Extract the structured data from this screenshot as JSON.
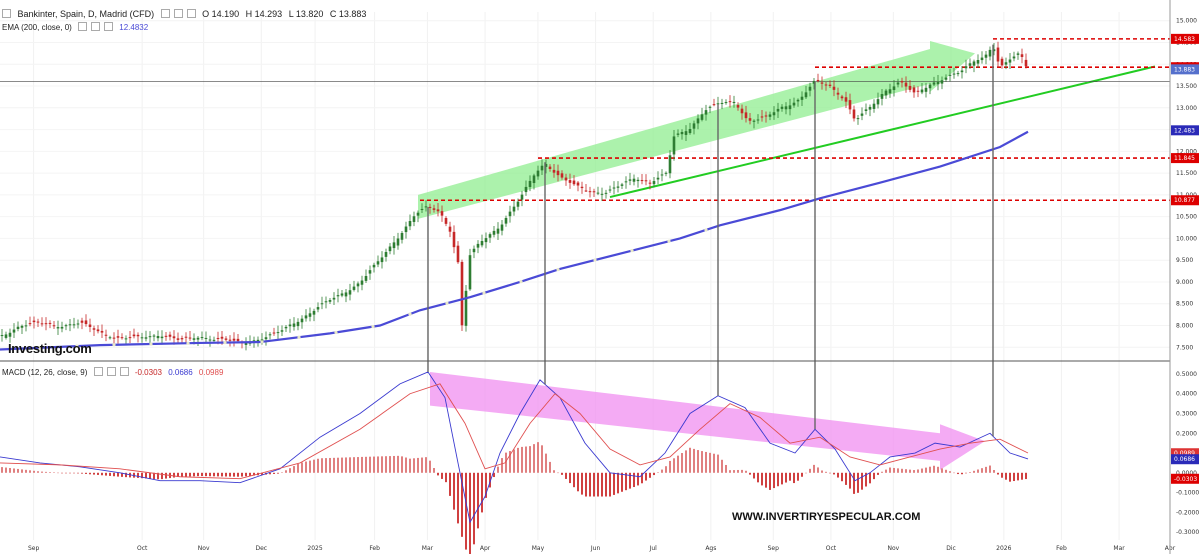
{
  "header": {
    "title": "Bankinter, Spain, D, Madrid (CFD)",
    "open": "O 14.190",
    "high": "H 14.293",
    "low": "L 13.820",
    "close": "C 13.883",
    "ema_label": "EMA (200, close, 0)",
    "ema_value": "12.4832",
    "macd_label": "MACD (12, 26, close, 9)",
    "macd_v1": "-0.0303",
    "macd_v2": "0.0686",
    "macd_v3": "0.0989"
  },
  "watermark": {
    "logo": "Investing.com",
    "site": "WWW.INVERTIRYESPECULAR.COM"
  },
  "colors": {
    "up": "#2e7d32",
    "down": "#c62828",
    "ema": "#4a4ad6",
    "macd": "#3a3ad0",
    "signal": "#e05050",
    "support": "#22cc22",
    "level": "#dd0000",
    "price_arrow": "#90ee90",
    "macd_arrow": "#f08ff0"
  },
  "chart_data": [
    {
      "type": "candlestick",
      "title": "Bankinter, Spain, D, Madrid (CFD)",
      "x_labels": [
        "Sep",
        "Oct",
        "Nov",
        "Dec",
        "2025",
        "Feb",
        "Mar",
        "Apr",
        "May",
        "Jun",
        "Jul",
        "Ags",
        "Sep",
        "Oct",
        "Nov",
        "Dic",
        "2026",
        "Feb",
        "Mar",
        "Abr"
      ],
      "y_ticks": [
        "7.500",
        "8.000",
        "8.500",
        "9.000",
        "9.500",
        "10.000",
        "10.500",
        "11.000",
        "11.500",
        "12.000",
        "12.500",
        "13.000",
        "13.500",
        "14.000",
        "14.500",
        "15.000"
      ],
      "ylim": [
        7.3,
        15.2
      ],
      "price_path": [
        [
          0,
          7.75
        ],
        [
          20,
          8.0
        ],
        [
          40,
          8.05
        ],
        [
          60,
          8.0
        ],
        [
          80,
          8.05
        ],
        [
          100,
          7.85
        ],
        [
          120,
          7.7
        ],
        [
          140,
          7.72
        ],
        [
          160,
          7.8
        ],
        [
          180,
          7.65
        ],
        [
          200,
          7.75
        ],
        [
          220,
          7.68
        ],
        [
          240,
          7.6
        ],
        [
          260,
          7.7
        ],
        [
          280,
          7.85
        ],
        [
          300,
          8.15
        ],
        [
          320,
          8.45
        ],
        [
          340,
          8.7
        ],
        [
          360,
          9.0
        ],
        [
          380,
          9.5
        ],
        [
          400,
          10.1
        ],
        [
          415,
          10.55
        ],
        [
          428,
          10.72
        ],
        [
          440,
          10.6
        ],
        [
          450,
          10.2
        ],
        [
          458,
          9.45
        ],
        [
          462,
          8.0
        ],
        [
          470,
          9.6
        ],
        [
          480,
          9.9
        ],
        [
          500,
          10.3
        ],
        [
          520,
          10.9
        ],
        [
          535,
          11.5
        ],
        [
          545,
          11.75
        ],
        [
          560,
          11.4
        ],
        [
          575,
          11.2
        ],
        [
          590,
          11.1
        ],
        [
          605,
          11.05
        ],
        [
          620,
          11.2
        ],
        [
          635,
          11.4
        ],
        [
          650,
          11.3
        ],
        [
          668,
          11.5
        ],
        [
          672,
          12.3
        ],
        [
          690,
          12.55
        ],
        [
          705,
          12.95
        ],
        [
          720,
          13.1
        ],
        [
          735,
          13.15
        ],
        [
          748,
          12.7
        ],
        [
          765,
          12.75
        ],
        [
          780,
          13.0
        ],
        [
          800,
          13.2
        ],
        [
          815,
          13.6
        ],
        [
          830,
          13.5
        ],
        [
          845,
          13.2
        ],
        [
          855,
          12.7
        ],
        [
          870,
          13.0
        ],
        [
          885,
          13.4
        ],
        [
          900,
          13.6
        ],
        [
          915,
          13.3
        ],
        [
          930,
          13.55
        ],
        [
          945,
          13.7
        ],
        [
          960,
          13.8
        ],
        [
          975,
          14.1
        ],
        [
          985,
          14.2
        ],
        [
          993,
          14.45
        ],
        [
          1000,
          13.9
        ],
        [
          1010,
          14.1
        ],
        [
          1020,
          14.25
        ],
        [
          1028,
          13.9
        ]
      ],
      "series": [
        {
          "name": "EMA (200, close, 0)",
          "last": 12.483,
          "path": [
            [
              0,
              7.45
            ],
            [
              100,
              7.55
            ],
            [
              200,
              7.6
            ],
            [
              260,
              7.62
            ],
            [
              330,
              7.82
            ],
            [
              380,
              8.0
            ],
            [
              420,
              8.35
            ],
            [
              470,
              8.65
            ],
            [
              520,
              9.0
            ],
            [
              560,
              9.3
            ],
            [
              620,
              9.65
            ],
            [
              680,
              10.0
            ],
            [
              720,
              10.3
            ],
            [
              780,
              10.65
            ],
            [
              820,
              10.92
            ],
            [
              880,
              11.28
            ],
            [
              940,
              11.65
            ],
            [
              1000,
              12.1
            ],
            [
              1028,
              12.45
            ]
          ]
        }
      ],
      "horizontal_levels": [
        14.583,
        13.932,
        11.845,
        10.877
      ],
      "last_price": 13.883,
      "current_line": 13.6
    },
    {
      "type": "line",
      "title": "MACD (12, 26, close, 9)",
      "y_ticks": [
        "0.5000",
        "0.4000",
        "0.3000",
        "0.2000",
        "0.1000",
        "0.0000",
        "-0.1000",
        "-0.2000",
        "-0.3000"
      ],
      "ylim": [
        -0.34,
        0.52
      ],
      "series": [
        {
          "name": "MACD",
          "last": 0.0686,
          "path": [
            [
              0,
              0.08
            ],
            [
              40,
              0.05
            ],
            [
              80,
              0.03
            ],
            [
              120,
              0.0
            ],
            [
              160,
              -0.04
            ],
            [
              200,
              -0.04
            ],
            [
              240,
              -0.05
            ],
            [
              280,
              0.02
            ],
            [
              320,
              0.18
            ],
            [
              360,
              0.3
            ],
            [
              400,
              0.45
            ],
            [
              428,
              0.51
            ],
            [
              445,
              0.38
            ],
            [
              458,
              0.05
            ],
            [
              470,
              -0.25
            ],
            [
              485,
              -0.12
            ],
            [
              500,
              0.1
            ],
            [
              520,
              0.3
            ],
            [
              540,
              0.47
            ],
            [
              560,
              0.38
            ],
            [
              585,
              0.15
            ],
            [
              610,
              0.0
            ],
            [
              640,
              -0.02
            ],
            [
              665,
              0.1
            ],
            [
              690,
              0.3
            ],
            [
              718,
              0.39
            ],
            [
              745,
              0.33
            ],
            [
              770,
              0.15
            ],
            [
              795,
              0.1
            ],
            [
              815,
              0.22
            ],
            [
              835,
              0.12
            ],
            [
              855,
              -0.04
            ],
            [
              870,
              0.0
            ],
            [
              890,
              0.08
            ],
            [
              915,
              0.1
            ],
            [
              935,
              0.15
            ],
            [
              960,
              0.13
            ],
            [
              990,
              0.2
            ],
            [
              1010,
              0.1
            ],
            [
              1028,
              0.07
            ]
          ]
        },
        {
          "name": "Signal",
          "last": 0.0989,
          "path": [
            [
              0,
              0.05
            ],
            [
              60,
              0.04
            ],
            [
              120,
              0.02
            ],
            [
              180,
              -0.02
            ],
            [
              240,
              -0.03
            ],
            [
              300,
              0.05
            ],
            [
              360,
              0.22
            ],
            [
              410,
              0.4
            ],
            [
              440,
              0.45
            ],
            [
              465,
              0.25
            ],
            [
              485,
              0.02
            ],
            [
              505,
              0.05
            ],
            [
              530,
              0.25
            ],
            [
              555,
              0.4
            ],
            [
              580,
              0.3
            ],
            [
              610,
              0.12
            ],
            [
              640,
              0.04
            ],
            [
              670,
              0.08
            ],
            [
              700,
              0.22
            ],
            [
              730,
              0.35
            ],
            [
              760,
              0.28
            ],
            [
              790,
              0.15
            ],
            [
              820,
              0.18
            ],
            [
              850,
              0.08
            ],
            [
              880,
              0.04
            ],
            [
              910,
              0.08
            ],
            [
              940,
              0.12
            ],
            [
              970,
              0.15
            ],
            [
              1000,
              0.17
            ],
            [
              1028,
              0.1
            ]
          ]
        }
      ],
      "histogram_last": -0.0303
    }
  ]
}
